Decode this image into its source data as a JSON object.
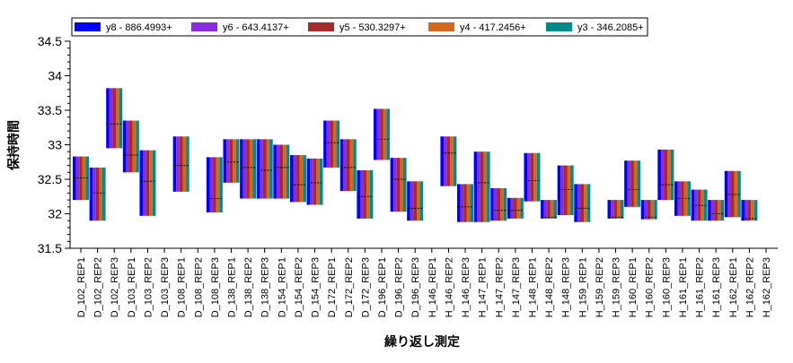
{
  "chart_data": {
    "type": "bar",
    "subtype": "floating-range-bars",
    "xlabel": "繰り返し測定",
    "ylabel": "保持時間",
    "ylim": [
      31.5,
      34.5
    ],
    "yticks": [
      "31.5",
      "32",
      "32.5",
      "33",
      "33.5",
      "34",
      "34.5"
    ],
    "grid": false,
    "legend_position": "top",
    "series": [
      {
        "name": "y8 - 886.4993+",
        "color": "#0000ff"
      },
      {
        "name": "y6 - 643.4137+",
        "color": "#8a2be2"
      },
      {
        "name": "y5 - 530.3297+",
        "color": "#a52a2a"
      },
      {
        "name": "y4 - 417.2456+",
        "color": "#d2691e"
      },
      {
        "name": "y3 - 346.2085+",
        "color": "#008b8b"
      }
    ],
    "categories": [
      "D_102_REP1",
      "D_102_REP2",
      "D_102_REP3",
      "D_103_REP1",
      "D_103_REP2",
      "D_103_REP3",
      "D_108_REP1",
      "D_108_REP2",
      "D_108_REP3",
      "D_138_REP1",
      "D_138_REP2",
      "D_138_REP3",
      "D_154_REP1",
      "D_154_REP2",
      "D_154_REP3",
      "D_172_REP1",
      "D_172_REP2",
      "D_172_REP3",
      "D_196_REP1",
      "D_196_REP2",
      "D_196_REP3",
      "H_146_REP1",
      "H_146_REP2",
      "H_146_REP3",
      "H_147_REP1",
      "H_147_REP2",
      "H_147_REP3",
      "H_148_REP1",
      "H_148_REP2",
      "H_148_REP3",
      "H_159_REP1",
      "H_159_REP2",
      "H_159_REP3",
      "H_160_REP1",
      "H_160_REP2",
      "H_160_REP3",
      "H_161_REP1",
      "H_161_REP2",
      "H_161_REP3",
      "H_162_REP1",
      "H_162_REP2",
      "H_162_REP3"
    ],
    "ranges": [
      [
        32.2,
        32.83
      ],
      [
        31.9,
        32.67
      ],
      [
        32.95,
        33.82
      ],
      [
        32.6,
        33.35
      ],
      [
        31.97,
        32.92
      ],
      null,
      [
        32.32,
        33.12
      ],
      null,
      [
        32.02,
        32.82
      ],
      [
        32.45,
        33.08
      ],
      [
        32.22,
        33.08
      ],
      [
        32.22,
        33.08
      ],
      [
        32.22,
        33.0
      ],
      [
        32.17,
        32.85
      ],
      [
        32.13,
        32.8
      ],
      [
        32.67,
        33.35
      ],
      [
        32.33,
        33.08
      ],
      [
        31.93,
        32.63
      ],
      [
        32.78,
        33.52
      ],
      [
        32.03,
        32.81
      ],
      [
        31.9,
        32.47
      ],
      null,
      [
        32.4,
        33.12
      ],
      [
        31.88,
        32.43
      ],
      [
        31.88,
        32.9
      ],
      [
        31.9,
        32.37
      ],
      [
        31.93,
        32.23
      ],
      [
        32.18,
        32.88
      ],
      [
        31.93,
        32.2
      ],
      [
        31.98,
        32.7
      ],
      [
        31.88,
        32.43
      ],
      null,
      [
        31.93,
        32.2
      ],
      [
        32.1,
        32.77
      ],
      [
        31.92,
        32.2
      ],
      [
        32.2,
        32.93
      ],
      [
        31.97,
        32.47
      ],
      [
        31.9,
        32.35
      ],
      [
        31.9,
        32.2
      ],
      [
        31.95,
        32.62
      ],
      [
        31.9,
        32.2
      ],
      null
    ],
    "medians": [
      32.52,
      32.3,
      33.3,
      32.85,
      32.47,
      null,
      32.7,
      null,
      32.22,
      32.75,
      32.67,
      32.63,
      32.67,
      32.42,
      32.45,
      33.03,
      32.67,
      32.25,
      33.08,
      32.5,
      32.08,
      null,
      32.88,
      32.1,
      32.45,
      32.05,
      32.05,
      32.48,
      31.95,
      32.35,
      32.08,
      null,
      31.95,
      32.35,
      31.95,
      32.42,
      32.22,
      32.12,
      32.0,
      32.28,
      31.93,
      null
    ]
  }
}
